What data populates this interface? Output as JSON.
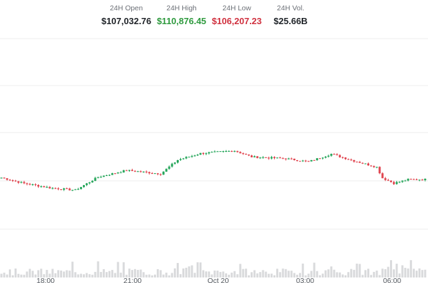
{
  "stats": {
    "open": {
      "label": "24H Open",
      "value": "$107,032.76"
    },
    "high": {
      "label": "24H High",
      "value": "$110,876.45"
    },
    "low": {
      "label": "24H Low",
      "value": "$106,207.23"
    },
    "vol": {
      "label": "24H Vol.",
      "value": "$25.66B"
    }
  },
  "colors": {
    "up": "#26a65b",
    "down": "#e0454f",
    "high_text": "#2e9a3e",
    "low_text": "#d0313f",
    "grid": "#ececec",
    "volume": "#d9dadc",
    "axis_text": "#555a60"
  },
  "chart_data": {
    "type": "candlestick",
    "title": "",
    "xlabel": "",
    "ylabel": "",
    "grid": true,
    "x_tick_labels": [
      "18:00",
      "21:00",
      "Oct 20",
      "03:00",
      "06:00"
    ],
    "price_trend": [
      {
        "step": 0,
        "close": 107380
      },
      {
        "step": 8,
        "close": 107080
      },
      {
        "step": 18,
        "close": 106830
      },
      {
        "step": 26,
        "close": 106730
      },
      {
        "step": 34,
        "close": 107410
      },
      {
        "step": 44,
        "close": 107760
      },
      {
        "step": 56,
        "close": 107580
      },
      {
        "step": 62,
        "close": 108300
      },
      {
        "step": 70,
        "close": 108640
      },
      {
        "step": 82,
        "close": 108780
      },
      {
        "step": 88,
        "close": 108460
      },
      {
        "step": 100,
        "close": 108370
      },
      {
        "step": 108,
        "close": 108210
      },
      {
        "step": 116,
        "close": 108610
      },
      {
        "step": 124,
        "close": 108250
      },
      {
        "step": 132,
        "close": 107930
      },
      {
        "step": 134,
        "close": 107360
      },
      {
        "step": 138,
        "close": 107090
      },
      {
        "step": 143,
        "close": 107280
      },
      {
        "step": 150,
        "close": 107290
      }
    ],
    "candle_count": 150
  }
}
